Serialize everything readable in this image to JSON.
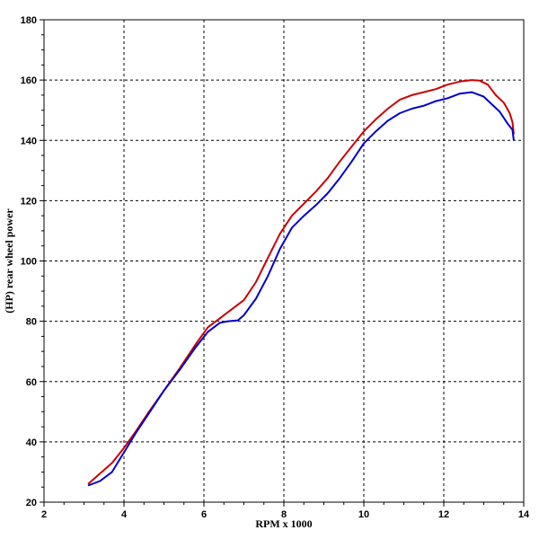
{
  "chart_data": {
    "type": "line",
    "title": "",
    "xlabel": "RPM x 1000",
    "ylabel": "(HP) rear wheel power",
    "xlim": [
      2,
      14
    ],
    "ylim": [
      20,
      180
    ],
    "x_ticks": [
      "2",
      "4",
      "6",
      "8",
      "10",
      "12",
      "14"
    ],
    "y_ticks": [
      "20",
      "40",
      "60",
      "80",
      "100",
      "120",
      "140",
      "160",
      "180"
    ],
    "grid": true,
    "legend": "none",
    "series": [
      {
        "color": "#cc0000",
        "points": [
          [
            3.1,
            26.0
          ],
          [
            3.4,
            29.5
          ],
          [
            3.7,
            33.0
          ],
          [
            4.0,
            38.0
          ],
          [
            4.3,
            43.5
          ],
          [
            4.6,
            49.5
          ],
          [
            5.0,
            57.0
          ],
          [
            5.4,
            64.5
          ],
          [
            5.8,
            72.5
          ],
          [
            6.1,
            78.0
          ],
          [
            6.4,
            81.0
          ],
          [
            6.7,
            84.0
          ],
          [
            7.0,
            87.0
          ],
          [
            7.3,
            93.0
          ],
          [
            7.6,
            101.0
          ],
          [
            7.9,
            109.0
          ],
          [
            8.2,
            115.0
          ],
          [
            8.5,
            119.0
          ],
          [
            8.8,
            123.0
          ],
          [
            9.1,
            127.5
          ],
          [
            9.4,
            133.0
          ],
          [
            9.7,
            138.0
          ],
          [
            10.0,
            143.0
          ],
          [
            10.3,
            147.0
          ],
          [
            10.6,
            150.5
          ],
          [
            10.9,
            153.5
          ],
          [
            11.2,
            155.0
          ],
          [
            11.5,
            156.0
          ],
          [
            11.8,
            157.0
          ],
          [
            12.1,
            158.5
          ],
          [
            12.4,
            159.5
          ],
          [
            12.7,
            160.0
          ],
          [
            12.9,
            159.8
          ],
          [
            13.1,
            158.5
          ],
          [
            13.3,
            155.0
          ],
          [
            13.5,
            152.5
          ],
          [
            13.65,
            149.0
          ],
          [
            13.72,
            146.0
          ],
          [
            13.75,
            142.0
          ]
        ]
      },
      {
        "color": "#0000cc",
        "points": [
          [
            3.1,
            25.5
          ],
          [
            3.4,
            27.0
          ],
          [
            3.7,
            30.0
          ],
          [
            4.0,
            36.5
          ],
          [
            4.3,
            43.0
          ],
          [
            4.6,
            49.0
          ],
          [
            5.0,
            57.0
          ],
          [
            5.4,
            64.0
          ],
          [
            5.8,
            71.5
          ],
          [
            6.1,
            76.5
          ],
          [
            6.4,
            79.5
          ],
          [
            6.6,
            80.0
          ],
          [
            6.85,
            80.3
          ],
          [
            7.0,
            82.0
          ],
          [
            7.3,
            87.5
          ],
          [
            7.6,
            95.0
          ],
          [
            7.9,
            104.0
          ],
          [
            8.2,
            111.0
          ],
          [
            8.5,
            115.0
          ],
          [
            8.8,
            118.5
          ],
          [
            9.1,
            122.5
          ],
          [
            9.4,
            127.5
          ],
          [
            9.7,
            133.0
          ],
          [
            10.0,
            139.0
          ],
          [
            10.3,
            143.0
          ],
          [
            10.6,
            146.5
          ],
          [
            10.9,
            149.0
          ],
          [
            11.2,
            150.5
          ],
          [
            11.5,
            151.5
          ],
          [
            11.8,
            153.0
          ],
          [
            12.1,
            154.0
          ],
          [
            12.4,
            155.5
          ],
          [
            12.7,
            156.0
          ],
          [
            13.0,
            154.5
          ],
          [
            13.2,
            152.0
          ],
          [
            13.4,
            149.5
          ],
          [
            13.6,
            145.5
          ],
          [
            13.72,
            143.5
          ],
          [
            13.75,
            140.0
          ]
        ]
      }
    ]
  }
}
